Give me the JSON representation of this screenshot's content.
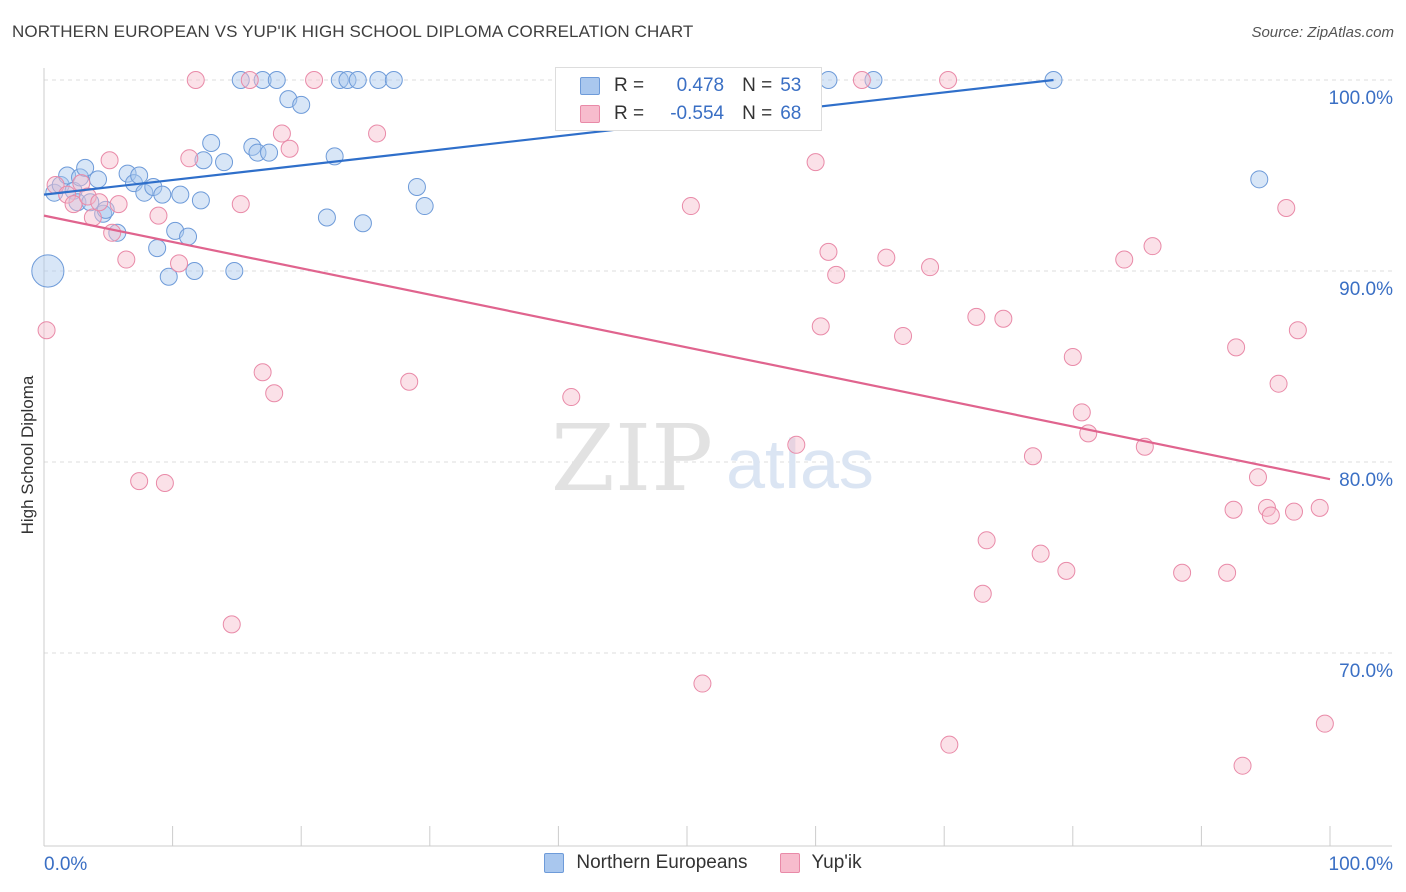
{
  "header": {
    "title": "NORTHERN EUROPEAN VS YUP'IK HIGH SCHOOL DIPLOMA CORRELATION CHART",
    "source": "Source: ZipAtlas.com"
  },
  "watermark": {
    "zip": "ZIP",
    "atlas": "atlas"
  },
  "legend": {
    "r_label": "R =",
    "n_label": "N =",
    "series": [
      {
        "name": "Northern Europeans",
        "r": "0.478",
        "n": "53",
        "fill": "#a9c7ee",
        "stroke": "#6e9bd9"
      },
      {
        "name": "Yup'ik",
        "r": "-0.554",
        "n": "68",
        "fill": "#f7bccd",
        "stroke": "#e98aa8"
      }
    ]
  },
  "colors": {
    "blue_line": "#2f6fca",
    "pink_line": "#e0648e",
    "value_text": "#3a6fc4",
    "grid": "#dddddd"
  },
  "chart_data": {
    "type": "scatter",
    "title": "NORTHERN EUROPEAN VS YUP'IK HIGH SCHOOL DIPLOMA CORRELATION CHART",
    "xlabel": "",
    "ylabel": "High School Diploma",
    "xlim": [
      0,
      100
    ],
    "ylim": [
      60,
      102
    ],
    "x_tick_labels": [
      "0.0%",
      "100.0%"
    ],
    "y_ticks": [
      100,
      90,
      80,
      70
    ],
    "y_tick_labels": [
      "100.0%",
      "90.0%",
      "80.0%",
      "70.0%"
    ],
    "grid": true,
    "series": [
      {
        "name": "Northern Europeans",
        "r": 0.478,
        "n": 53,
        "trend": {
          "x": [
            0,
            78.5
          ],
          "y": [
            94.0,
            100.0
          ]
        },
        "points": [
          {
            "x": 0.3,
            "y": 90.0,
            "size": 3
          },
          {
            "x": 0.8,
            "y": 94.1
          },
          {
            "x": 1.3,
            "y": 94.5
          },
          {
            "x": 1.8,
            "y": 95.0
          },
          {
            "x": 2.3,
            "y": 94.2
          },
          {
            "x": 2.6,
            "y": 93.6
          },
          {
            "x": 2.8,
            "y": 94.9
          },
          {
            "x": 3.2,
            "y": 95.4
          },
          {
            "x": 3.6,
            "y": 93.6
          },
          {
            "x": 4.2,
            "y": 94.8
          },
          {
            "x": 4.6,
            "y": 93.0
          },
          {
            "x": 4.8,
            "y": 93.2
          },
          {
            "x": 5.7,
            "y": 92.0
          },
          {
            "x": 6.5,
            "y": 95.1
          },
          {
            "x": 7.0,
            "y": 94.6
          },
          {
            "x": 7.4,
            "y": 95.0
          },
          {
            "x": 7.8,
            "y": 94.1
          },
          {
            "x": 8.5,
            "y": 94.4
          },
          {
            "x": 8.8,
            "y": 91.2
          },
          {
            "x": 9.2,
            "y": 94.0
          },
          {
            "x": 9.7,
            "y": 89.7
          },
          {
            "x": 10.2,
            "y": 92.1
          },
          {
            "x": 10.6,
            "y": 94.0
          },
          {
            "x": 11.2,
            "y": 91.8
          },
          {
            "x": 11.7,
            "y": 90.0
          },
          {
            "x": 12.2,
            "y": 93.7
          },
          {
            "x": 12.4,
            "y": 95.8
          },
          {
            "x": 13.0,
            "y": 96.7
          },
          {
            "x": 14.0,
            "y": 95.7
          },
          {
            "x": 14.8,
            "y": 90.0
          },
          {
            "x": 15.3,
            "y": 100.0
          },
          {
            "x": 16.2,
            "y": 96.5
          },
          {
            "x": 16.6,
            "y": 96.2
          },
          {
            "x": 17.0,
            "y": 100.0
          },
          {
            "x": 17.5,
            "y": 96.2
          },
          {
            "x": 18.1,
            "y": 100.0
          },
          {
            "x": 19.0,
            "y": 99.0
          },
          {
            "x": 20.0,
            "y": 98.7
          },
          {
            "x": 22.0,
            "y": 92.8
          },
          {
            "x": 22.6,
            "y": 96.0
          },
          {
            "x": 23.0,
            "y": 100.0
          },
          {
            "x": 23.6,
            "y": 100.0
          },
          {
            "x": 24.4,
            "y": 100.0
          },
          {
            "x": 24.8,
            "y": 92.5
          },
          {
            "x": 26.0,
            "y": 100.0
          },
          {
            "x": 27.2,
            "y": 100.0
          },
          {
            "x": 29.0,
            "y": 94.4
          },
          {
            "x": 29.6,
            "y": 93.4
          },
          {
            "x": 41.0,
            "y": 100.0
          },
          {
            "x": 61.0,
            "y": 100.0
          },
          {
            "x": 64.5,
            "y": 100.0
          },
          {
            "x": 78.5,
            "y": 100.0
          },
          {
            "x": 94.5,
            "y": 94.8
          }
        ]
      },
      {
        "name": "Yup'ik",
        "r": -0.554,
        "n": 68,
        "trend": {
          "x": [
            0,
            100
          ],
          "y": [
            92.9,
            79.1
          ]
        },
        "points": [
          {
            "x": 0.2,
            "y": 86.9
          },
          {
            "x": 0.9,
            "y": 94.5
          },
          {
            "x": 1.8,
            "y": 94.0
          },
          {
            "x": 2.3,
            "y": 93.5
          },
          {
            "x": 2.9,
            "y": 94.6
          },
          {
            "x": 3.4,
            "y": 93.9
          },
          {
            "x": 3.8,
            "y": 92.8
          },
          {
            "x": 4.3,
            "y": 93.6
          },
          {
            "x": 5.1,
            "y": 95.8
          },
          {
            "x": 5.3,
            "y": 92.0
          },
          {
            "x": 5.8,
            "y": 93.5
          },
          {
            "x": 6.4,
            "y": 90.6
          },
          {
            "x": 7.4,
            "y": 79.0
          },
          {
            "x": 8.9,
            "y": 92.9
          },
          {
            "x": 9.4,
            "y": 78.9
          },
          {
            "x": 10.5,
            "y": 90.4
          },
          {
            "x": 11.3,
            "y": 95.9
          },
          {
            "x": 11.8,
            "y": 100.0
          },
          {
            "x": 14.6,
            "y": 71.5
          },
          {
            "x": 15.3,
            "y": 93.5
          },
          {
            "x": 16.0,
            "y": 100.0
          },
          {
            "x": 17.0,
            "y": 84.7
          },
          {
            "x": 17.9,
            "y": 83.6
          },
          {
            "x": 18.5,
            "y": 97.2
          },
          {
            "x": 19.1,
            "y": 96.4
          },
          {
            "x": 21.0,
            "y": 100.0
          },
          {
            "x": 25.9,
            "y": 97.2
          },
          {
            "x": 28.4,
            "y": 84.2
          },
          {
            "x": 41.0,
            "y": 83.4
          },
          {
            "x": 50.3,
            "y": 93.4
          },
          {
            "x": 51.2,
            "y": 68.4
          },
          {
            "x": 58.5,
            "y": 80.9
          },
          {
            "x": 60.0,
            "y": 95.7
          },
          {
            "x": 60.4,
            "y": 87.1
          },
          {
            "x": 61.0,
            "y": 91.0
          },
          {
            "x": 61.6,
            "y": 89.8
          },
          {
            "x": 63.6,
            "y": 100.0
          },
          {
            "x": 65.5,
            "y": 90.7
          },
          {
            "x": 66.8,
            "y": 86.6
          },
          {
            "x": 68.9,
            "y": 90.2
          },
          {
            "x": 70.3,
            "y": 100.0
          },
          {
            "x": 70.4,
            "y": 65.2
          },
          {
            "x": 72.5,
            "y": 87.6
          },
          {
            "x": 73.0,
            "y": 73.1
          },
          {
            "x": 73.3,
            "y": 75.9
          },
          {
            "x": 74.6,
            "y": 87.5
          },
          {
            "x": 76.9,
            "y": 80.3
          },
          {
            "x": 77.5,
            "y": 75.2
          },
          {
            "x": 79.5,
            "y": 74.3
          },
          {
            "x": 80.0,
            "y": 85.5
          },
          {
            "x": 80.7,
            "y": 82.6
          },
          {
            "x": 81.2,
            "y": 81.5
          },
          {
            "x": 84.0,
            "y": 90.6
          },
          {
            "x": 85.6,
            "y": 80.8
          },
          {
            "x": 86.2,
            "y": 91.3
          },
          {
            "x": 88.5,
            "y": 74.2
          },
          {
            "x": 92.0,
            "y": 74.2
          },
          {
            "x": 92.5,
            "y": 77.5
          },
          {
            "x": 92.7,
            "y": 86.0
          },
          {
            "x": 93.2,
            "y": 64.1
          },
          {
            "x": 94.4,
            "y": 79.2
          },
          {
            "x": 95.1,
            "y": 77.6
          },
          {
            "x": 95.4,
            "y": 77.2
          },
          {
            "x": 96.0,
            "y": 84.1
          },
          {
            "x": 96.6,
            "y": 93.3
          },
          {
            "x": 97.2,
            "y": 77.4
          },
          {
            "x": 97.5,
            "y": 86.9
          },
          {
            "x": 99.2,
            "y": 77.6
          },
          {
            "x": 99.6,
            "y": 66.3
          }
        ]
      }
    ]
  }
}
